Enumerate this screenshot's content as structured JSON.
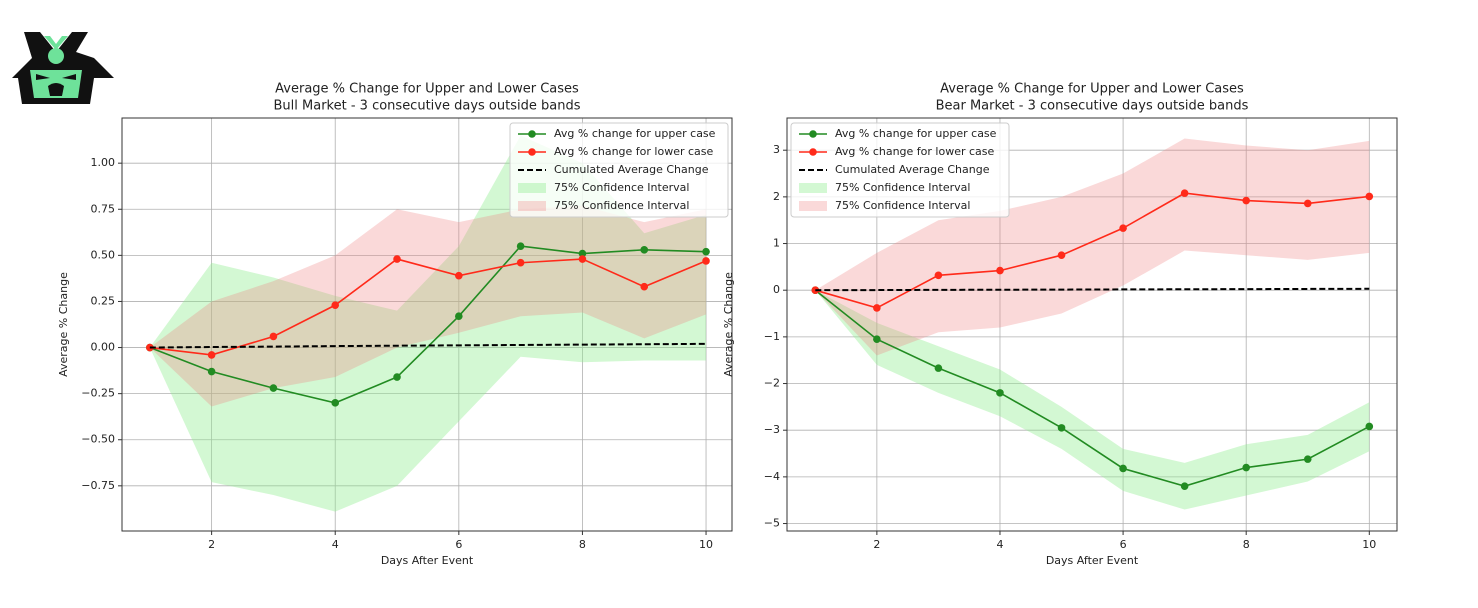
{
  "chart_data": [
    {
      "type": "line",
      "title": "Average % Change for Upper and Lower Cases",
      "subtitle": "Bull Market - 3 consecutive days outside bands",
      "xlabel": "Days After Event",
      "ylabel": "Average % Change",
      "x": [
        1,
        2,
        3,
        4,
        5,
        6,
        7,
        8,
        9,
        10
      ],
      "xlim": [
        0.55,
        10.42
      ],
      "xticks": [
        2,
        4,
        6,
        8,
        10
      ],
      "ylim": [
        -0.995,
        1.245
      ],
      "yticks": [
        {
          "value": -0.75,
          "label": "−0.75"
        },
        {
          "value": -0.5,
          "label": "−0.50"
        },
        {
          "value": -0.25,
          "label": "−0.25"
        },
        {
          "value": 0,
          "label": "0.00"
        },
        {
          "value": 0.25,
          "label": "0.25"
        },
        {
          "value": 0.5,
          "label": "0.50"
        },
        {
          "value": 0.75,
          "label": "0.75"
        },
        {
          "value": 1,
          "label": "1.00"
        }
      ],
      "grid": true,
      "legend": "upper right",
      "series": [
        {
          "name": "Avg % change for upper case",
          "color": "#228b22",
          "marker": "o",
          "values": [
            0,
            -0.13,
            -0.22,
            -0.3,
            -0.16,
            0.17,
            0.55,
            0.51,
            0.53,
            0.52
          ]
        },
        {
          "name": "Avg % change for lower case",
          "color": "#ff2a1a",
          "marker": "o",
          "values": [
            0,
            -0.04,
            0.06,
            0.23,
            0.48,
            0.39,
            0.46,
            0.48,
            0.33,
            0.47
          ]
        },
        {
          "name": "Cumulated Average Change",
          "color": "#000000",
          "dashed": true,
          "values": [
            0,
            0.003,
            0.005,
            0.008,
            0.01,
            0.012,
            0.014,
            0.016,
            0.018,
            0.02
          ]
        },
        {
          "name": "75% Confidence Interval",
          "color": "rgba(144,238,144,0.4)",
          "lower": [
            0,
            -0.73,
            -0.8,
            -0.89,
            -0.75,
            -0.4,
            -0.05,
            -0.08,
            -0.07,
            -0.07
          ],
          "upper": [
            0,
            0.46,
            0.38,
            0.28,
            0.2,
            0.55,
            1.15,
            1.0,
            0.62,
            0.72
          ]
        },
        {
          "name": "75% Confidence Interval",
          "color": "rgba(240,128,128,0.3)",
          "lower": [
            0,
            -0.32,
            -0.22,
            -0.16,
            0.0,
            0.08,
            0.17,
            0.19,
            0.05,
            0.18
          ],
          "upper": [
            0,
            0.25,
            0.36,
            0.5,
            0.75,
            0.68,
            0.75,
            0.77,
            0.68,
            0.75
          ]
        }
      ]
    },
    {
      "type": "line",
      "title": "Average % Change for Upper and Lower Cases",
      "subtitle": "Bear Market - 3 consecutive days outside bands",
      "xlabel": "Days After Event",
      "ylabel": "Average % Change",
      "x": [
        1,
        2,
        3,
        4,
        5,
        6,
        7,
        8,
        9,
        10
      ],
      "xlim": [
        0.54,
        10.45
      ],
      "xticks": [
        2,
        4,
        6,
        8,
        10
      ],
      "ylim": [
        -5.16,
        3.69
      ],
      "yticks": [
        {
          "value": -5,
          "label": "−5"
        },
        {
          "value": -4,
          "label": "−4"
        },
        {
          "value": -3,
          "label": "−3"
        },
        {
          "value": -2,
          "label": "−2"
        },
        {
          "value": -1,
          "label": "−1"
        },
        0,
        1,
        2,
        3
      ],
      "grid": true,
      "legend": "upper left",
      "series": [
        {
          "name": "Avg % change for upper case",
          "color": "#228b22",
          "marker": "o",
          "values": [
            0,
            -1.05,
            -1.67,
            -2.2,
            -2.95,
            -3.82,
            -4.2,
            -3.8,
            -3.62,
            -2.92
          ]
        },
        {
          "name": "Avg % change for lower case",
          "color": "#ff2a1a",
          "marker": "o",
          "values": [
            0,
            -0.38,
            0.32,
            0.42,
            0.75,
            1.33,
            2.08,
            1.92,
            1.86,
            2.01
          ]
        },
        {
          "name": "Cumulated Average Change",
          "color": "#000000",
          "dashed": true,
          "values": [
            0,
            0.003,
            0.007,
            0.01,
            0.013,
            0.017,
            0.02,
            0.023,
            0.027,
            0.03
          ]
        },
        {
          "name": "75% Confidence Interval",
          "color": "rgba(144,238,144,0.4)",
          "lower": [
            0,
            -1.6,
            -2.2,
            -2.7,
            -3.4,
            -4.3,
            -4.7,
            -4.4,
            -4.1,
            -3.45
          ],
          "upper": [
            0,
            -0.7,
            -1.2,
            -1.7,
            -2.5,
            -3.4,
            -3.7,
            -3.3,
            -3.1,
            -2.4
          ]
        },
        {
          "name": "75% Confidence Interval",
          "color": "rgba(240,128,128,0.3)",
          "lower": [
            0,
            -1.4,
            -0.9,
            -0.8,
            -0.5,
            0.1,
            0.85,
            0.75,
            0.65,
            0.8
          ],
          "upper": [
            0,
            0.8,
            1.5,
            1.7,
            2.0,
            2.5,
            3.25,
            3.1,
            3.0,
            3.2
          ]
        }
      ]
    }
  ]
}
